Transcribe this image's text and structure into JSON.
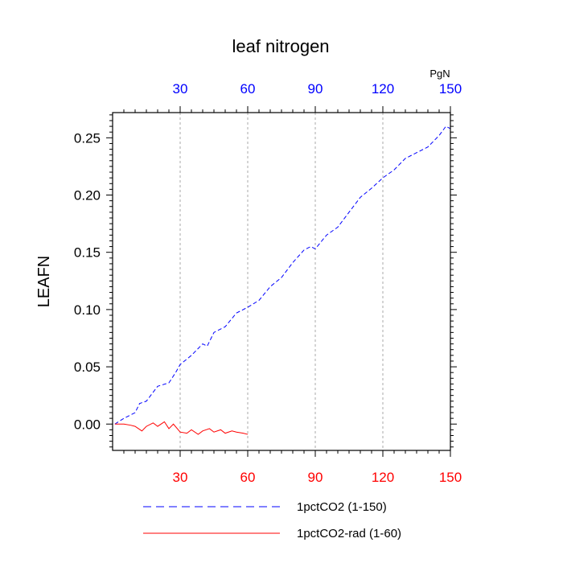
{
  "chart_data": {
    "type": "line",
    "title": "leaf nitrogen",
    "ylabel": "LEAFN",
    "unit_label": "PgN",
    "xlim": [
      0,
      150
    ],
    "ylim": [
      -0.023,
      0.272
    ],
    "x_ticks": [
      30,
      60,
      90,
      120,
      150
    ],
    "x_tick_labels": [
      "30",
      "60",
      "90",
      "120",
      "150"
    ],
    "y_ticks": [
      0.0,
      0.05,
      0.1,
      0.15,
      0.2,
      0.25
    ],
    "y_tick_labels": [
      "0.00",
      "0.05",
      "0.10",
      "0.15",
      "0.20",
      "0.25"
    ],
    "grid": "vertical dotted lines at x ticks",
    "top_axis_color": "#0000ff",
    "bottom_axis_color": "#ff0000",
    "series": [
      {
        "name": "1pctCO2 (1-150)",
        "color": "#0000ff",
        "style": "dashed",
        "x": [
          1,
          5,
          10,
          12,
          15,
          20,
          25,
          28,
          30,
          35,
          40,
          42,
          45,
          50,
          55,
          60,
          65,
          70,
          75,
          80,
          85,
          88,
          90,
          95,
          100,
          105,
          110,
          115,
          120,
          125,
          130,
          135,
          140,
          145,
          148,
          150
        ],
        "y": [
          0.0,
          0.005,
          0.01,
          0.018,
          0.02,
          0.033,
          0.036,
          0.045,
          0.052,
          0.06,
          0.07,
          0.068,
          0.08,
          0.085,
          0.097,
          0.102,
          0.108,
          0.12,
          0.128,
          0.141,
          0.152,
          0.155,
          0.153,
          0.165,
          0.172,
          0.185,
          0.198,
          0.206,
          0.215,
          0.222,
          0.232,
          0.237,
          0.242,
          0.252,
          0.26,
          0.258
        ]
      },
      {
        "name": "1pctCO2-rad (1-60)",
        "color": "#ff0000",
        "style": "solid",
        "x": [
          1,
          5,
          8,
          10,
          13,
          15,
          18,
          20,
          23,
          25,
          27,
          30,
          33,
          35,
          38,
          40,
          43,
          45,
          48,
          50,
          53,
          55,
          58,
          60
        ],
        "y": [
          0.0,
          0.0,
          -0.001,
          -0.002,
          -0.006,
          -0.002,
          0.001,
          -0.002,
          0.002,
          -0.004,
          0.0,
          -0.007,
          -0.008,
          -0.005,
          -0.009,
          -0.006,
          -0.004,
          -0.007,
          -0.005,
          -0.008,
          -0.006,
          -0.007,
          -0.008,
          -0.009
        ]
      }
    ]
  }
}
